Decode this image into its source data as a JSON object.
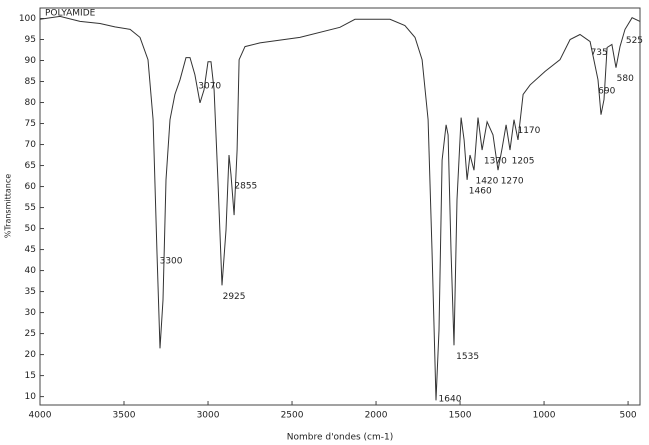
{
  "chart_data": {
    "type": "line",
    "title": "POLYAMIDE",
    "x_label": "Nombre d'ondes (cm-1)",
    "y_label": "%Transmittance",
    "xlim": [
      4000,
      429
    ],
    "ylim": [
      8,
      102.5
    ],
    "xticks": [
      4000,
      3500,
      3000,
      2500,
      2000,
      1500,
      1000,
      500
    ],
    "yticks": [
      10,
      15,
      20,
      25,
      30,
      35,
      40,
      45,
      50,
      55,
      60,
      65,
      70,
      75,
      80,
      85,
      90,
      95,
      100
    ],
    "color": "#333333",
    "x": [
      4000,
      3881,
      3762,
      3643,
      3554,
      3464,
      3405,
      3357,
      3327,
      3304,
      3286,
      3268,
      3250,
      3226,
      3197,
      3167,
      3131,
      3107,
      3078,
      3048,
      3024,
      3000,
      2982,
      2964,
      2941,
      2917,
      2893,
      2875,
      2863,
      2845,
      2827,
      2815,
      2780,
      2691,
      2453,
      2215,
      2125,
      1917,
      1828,
      1768,
      1726,
      1690,
      1667,
      1643,
      1625,
      1607,
      1583,
      1571,
      1554,
      1536,
      1518,
      1494,
      1476,
      1458,
      1441,
      1417,
      1393,
      1369,
      1339,
      1304,
      1274,
      1250,
      1226,
      1203,
      1179,
      1155,
      1125,
      1083,
      994,
      905,
      845,
      786,
      726,
      679,
      661,
      643,
      625,
      596,
      572,
      548,
      518,
      476,
      429
    ],
    "y": [
      99.8,
      100.5,
      99.3,
      98.8,
      98,
      97.4,
      95.5,
      90.2,
      75.9,
      44.9,
      21.5,
      33,
      61.6,
      75.9,
      81.9,
      85.4,
      90.7,
      90.7,
      86.6,
      79.9,
      83,
      89.7,
      89.7,
      83,
      61.6,
      36.5,
      49.6,
      67.5,
      62.8,
      53.2,
      68.7,
      90.2,
      93.3,
      94.2,
      95.5,
      97.9,
      99.8,
      99.8,
      98.3,
      95.5,
      90.2,
      75.9,
      44.9,
      9.1,
      25.8,
      66.3,
      74.7,
      72.3,
      44.9,
      22.2,
      56.9,
      76.4,
      71.1,
      61.6,
      67.5,
      63.9,
      76.4,
      68.7,
      75.4,
      72.3,
      63.9,
      69.1,
      74.7,
      68.7,
      75.9,
      71.1,
      81.9,
      84.2,
      87.4,
      90.2,
      95,
      96.2,
      94.5,
      85.4,
      77.1,
      80.7,
      93.1,
      93.8,
      88.3,
      93.3,
      97.4,
      100.2,
      99.3
    ],
    "peaks": [
      3300,
      3070,
      2925,
      2855,
      1640,
      1535,
      1460,
      1420,
      1370,
      1270,
      1205,
      1170,
      735,
      690,
      580,
      525
    ]
  }
}
